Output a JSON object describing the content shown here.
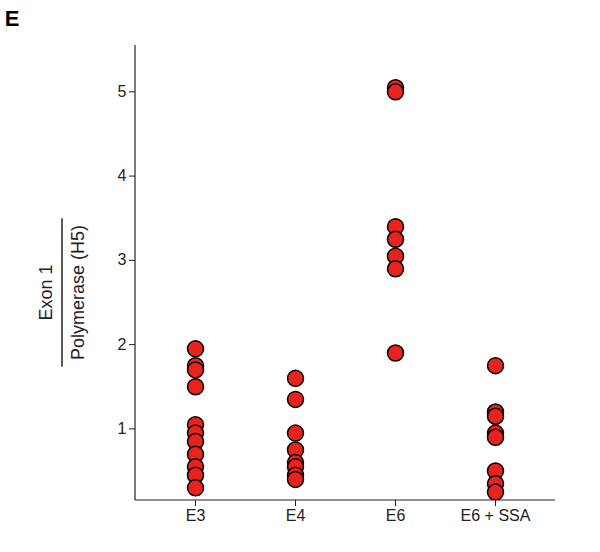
{
  "chart_data": {
    "type": "scatter",
    "panel": "E",
    "ylabel": [
      "Exon 1",
      "Polymerase (H5)"
    ],
    "categories": [
      "E3",
      "E4",
      "E6",
      "E6 + SSA"
    ],
    "values": [
      [
        1.95,
        1.75,
        1.7,
        1.5,
        1.05,
        0.95,
        0.85,
        0.7,
        0.55,
        0.45,
        0.3
      ],
      [
        1.6,
        1.35,
        0.95,
        0.75,
        0.6,
        0.55,
        0.45,
        0.4
      ],
      [
        5.05,
        5.0,
        3.4,
        3.25,
        3.05,
        2.9,
        1.9
      ],
      [
        1.75,
        1.2,
        1.15,
        0.95,
        0.9,
        0.5,
        0.35,
        0.25
      ]
    ],
    "color": "#e8231e",
    "marker": "circle",
    "ylim": [
      0.15,
      5.55
    ],
    "yticks": [
      1,
      2,
      3,
      4,
      5
    ],
    "grid": false
  }
}
